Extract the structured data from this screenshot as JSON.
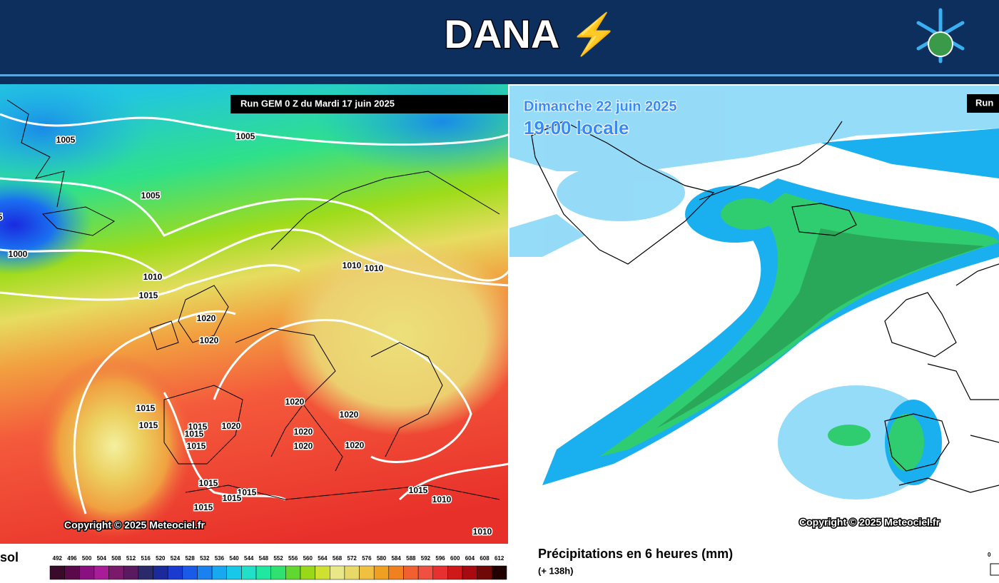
{
  "header": {
    "title": "DANA ⚡"
  },
  "left_map": {
    "run_label": "Run GEM 0 Z du Mardi 17 juin 2025",
    "isobar_labels": [
      "1005",
      "1005",
      "1005",
      "1000",
      "5",
      "1010",
      "1015",
      "1010",
      "1010",
      "1020",
      "1020",
      "1020",
      "1020",
      "1015",
      "1015",
      "1015",
      "1015",
      "1015",
      "1020",
      "1020",
      "1020",
      "1020",
      "1015",
      "1015",
      "1015",
      "1015",
      "1015",
      "1010",
      "1010"
    ],
    "copyright": "Copyright © 2025 Meteociel.fr",
    "legend_label": "sol",
    "scale": [
      492,
      496,
      500,
      504,
      508,
      512,
      516,
      520,
      524,
      528,
      532,
      536,
      540,
      544,
      548,
      552,
      556,
      560,
      564,
      568,
      572,
      576,
      580,
      584,
      588,
      592,
      596,
      600,
      604,
      608,
      612
    ],
    "scale_colors": [
      "#3a0a2a",
      "#5a0a4a",
      "#8a1080",
      "#a81c98",
      "#7a1a6a",
      "#5a1a60",
      "#2a2a6a",
      "#1a2a9a",
      "#1a3ad0",
      "#1a5ae8",
      "#1a82f0",
      "#18a8f0",
      "#18c8e8",
      "#20e0c8",
      "#20e8a0",
      "#30e070",
      "#60d830",
      "#98d818",
      "#d0e030",
      "#e8e888",
      "#e8d868",
      "#f0c040",
      "#f0a020",
      "#f08020",
      "#f06030",
      "#f05040",
      "#e83030",
      "#d01818",
      "#a80a10",
      "#700808",
      "#200000"
    ]
  },
  "right_map": {
    "date": "Dimanche 22 juin 2025",
    "time": "19:00 locale",
    "run_label": "Run",
    "copyright": "Copyright © 2025 Meteociel.fr",
    "legend_title": "Précipitations en 6 heures (mm)",
    "legend_subtitle": "(+ 138h)",
    "legend_tick": "0"
  }
}
